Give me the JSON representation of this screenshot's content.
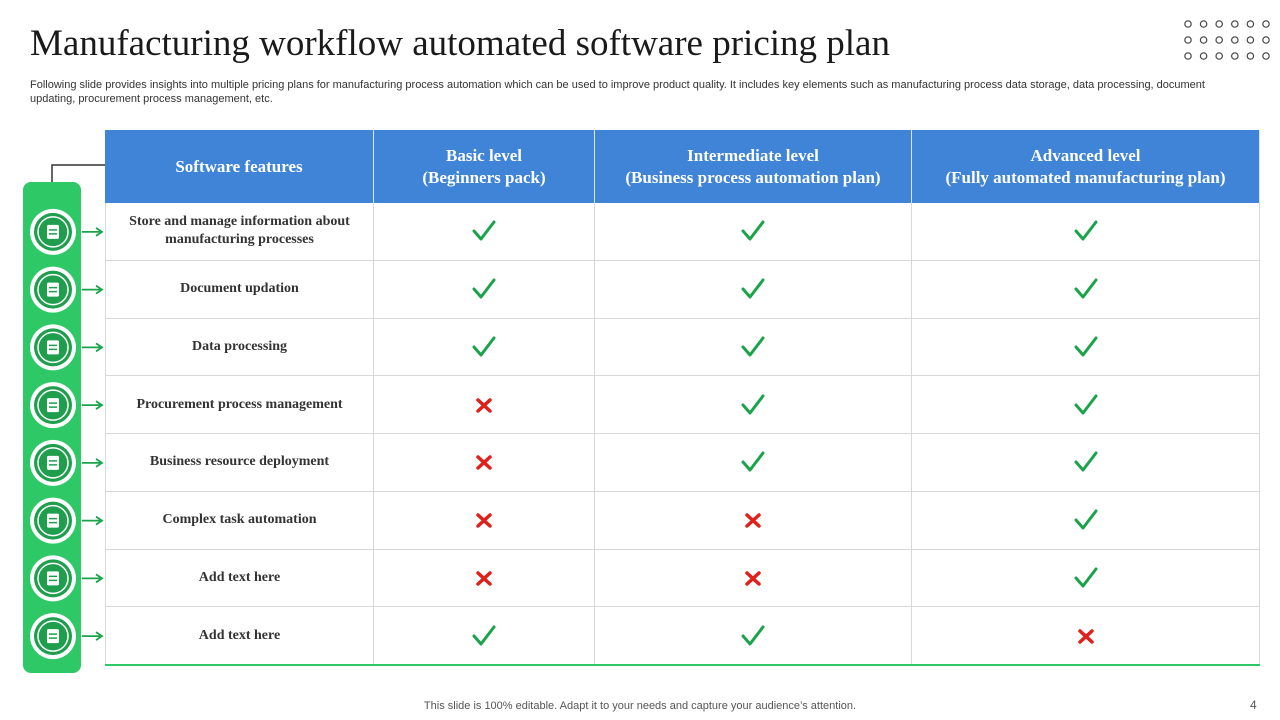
{
  "header": {
    "title": "Manufacturing workflow automated software pricing plan",
    "description": "Following slide provides insights into multiple pricing plans for manufacturing process automation which can be used to improve product quality. It includes key elements such as manufacturing process data storage, data processing, document updating, procurement process management, etc."
  },
  "table": {
    "columns": [
      {
        "name": "Software features"
      },
      {
        "name": "Basic level",
        "subtitle": "(Beginners pack)"
      },
      {
        "name": "Intermediate level",
        "subtitle": "(Business process automation plan)"
      },
      {
        "name": "Advanced level",
        "subtitle": "(Fully automated manufacturing plan)"
      }
    ],
    "rows": [
      {
        "feature": "Store and manage information about manufacturing processes",
        "availability": [
          true,
          true,
          true
        ]
      },
      {
        "feature": "Document updation",
        "availability": [
          true,
          true,
          true
        ]
      },
      {
        "feature": "Data processing",
        "availability": [
          true,
          true,
          true
        ]
      },
      {
        "feature": "Procurement process management",
        "availability": [
          false,
          true,
          true
        ]
      },
      {
        "feature": "Business resource deployment",
        "availability": [
          false,
          true,
          true
        ]
      },
      {
        "feature": "Complex task automation",
        "availability": [
          false,
          false,
          true
        ]
      },
      {
        "feature": "Add text here",
        "availability": [
          false,
          false,
          true
        ]
      },
      {
        "feature": "Add text here",
        "availability": [
          true,
          true,
          false
        ]
      }
    ]
  },
  "footer": {
    "note": "This slide is 100% editable. Adapt it to your needs and capture your audience’s attention.",
    "page_number": 4
  }
}
